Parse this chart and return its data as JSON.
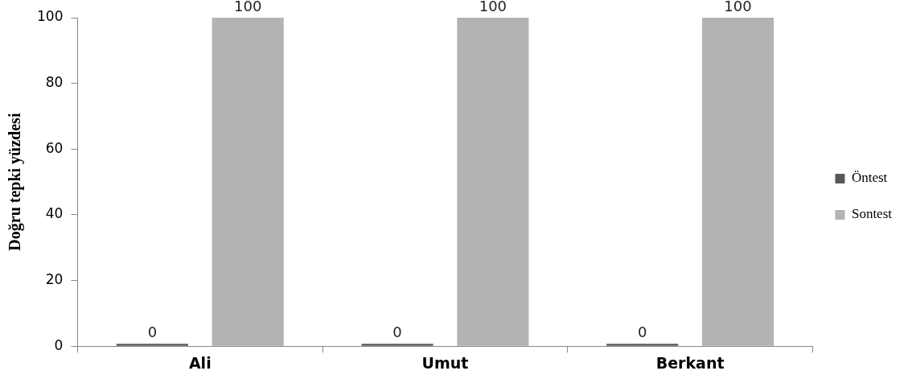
{
  "chart_data": {
    "type": "bar",
    "ylabel": "Doğru tepki yüzdesi",
    "categories": [
      "Ali",
      "Umut",
      "Berkant"
    ],
    "series": [
      {
        "name": "Öntest",
        "color": "#595959",
        "values": [
          0,
          0,
          0
        ]
      },
      {
        "name": "Sontest",
        "color": "#b3b3b3",
        "values": [
          100,
          100,
          100
        ]
      }
    ],
    "ylim": [
      0,
      100
    ],
    "yticks": [
      0,
      20,
      40,
      60,
      80,
      100
    ],
    "grid": false,
    "legend": "right",
    "data_labels": true
  }
}
